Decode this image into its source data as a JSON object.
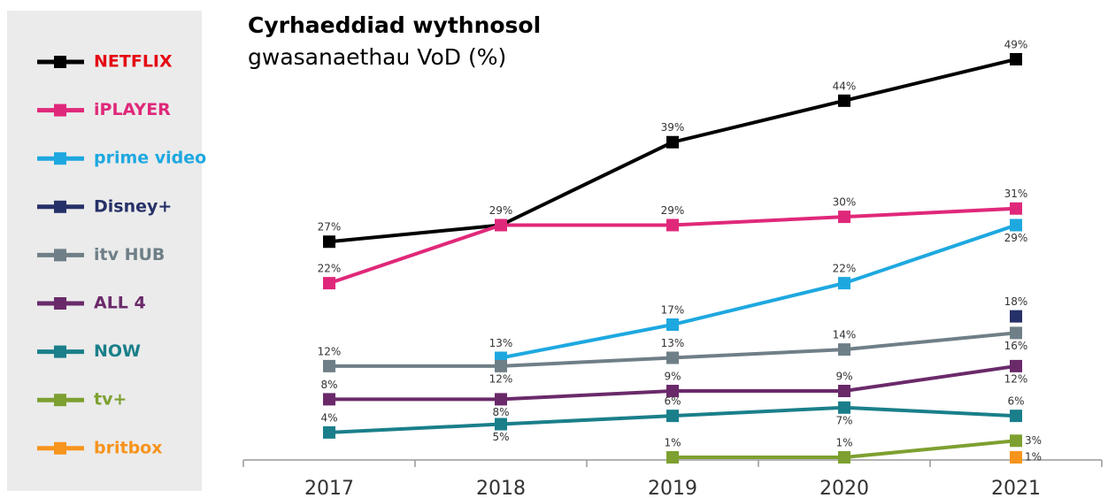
{
  "chart_data": {
    "type": "line",
    "title": "Cyrhaeddiad wythnosol",
    "subtitle": "gwasanaethau VoD (%)",
    "categories": [
      "2017",
      "2018",
      "2019",
      "2020",
      "2021"
    ],
    "ylim": [
      0,
      50
    ],
    "series": [
      {
        "name": "NETFLIX",
        "color": "#000000",
        "values": [
          27,
          29,
          39,
          44,
          49
        ],
        "value_labels": [
          "27%",
          "29%",
          "39%",
          "44%",
          "49%"
        ]
      },
      {
        "name": "iPLAYER",
        "color": "#e0287a",
        "values": [
          22,
          29,
          29,
          30,
          31
        ],
        "value_labels": [
          "22%",
          null,
          "29%",
          "30%",
          "31%"
        ]
      },
      {
        "name": "prime video",
        "color": "#1ea8e0",
        "values": [
          null,
          13,
          17,
          22,
          29
        ],
        "value_labels": [
          null,
          "13%",
          "17%",
          "22%",
          "29%"
        ]
      },
      {
        "name": "Disney+",
        "color": "#263068",
        "values": [
          null,
          null,
          null,
          null,
          18
        ],
        "value_labels": [
          null,
          null,
          null,
          null,
          "18%"
        ]
      },
      {
        "name": "itv HUB",
        "color": "#6f7f87",
        "values": [
          12,
          12,
          13,
          14,
          16
        ],
        "value_labels": [
          "12%",
          "12%",
          "13%",
          "14%",
          "16%"
        ]
      },
      {
        "name": "ALL 4",
        "color": "#6a2a6a",
        "values": [
          8,
          8,
          9,
          9,
          12
        ],
        "value_labels": [
          "8%",
          "8%",
          "9%",
          "9%",
          "12%"
        ]
      },
      {
        "name": "NOW",
        "color": "#1a7f8a",
        "values": [
          4,
          5,
          6,
          7,
          6
        ],
        "value_labels": [
          "4%",
          "5%",
          "6%",
          "7%",
          "6%"
        ]
      },
      {
        "name": "tv+",
        "color": "#7da030",
        "values": [
          null,
          null,
          1,
          1,
          3
        ],
        "value_labels": [
          null,
          null,
          "1%",
          "1%",
          "3%"
        ]
      },
      {
        "name": "britbox",
        "color": "#f7941d",
        "values": [
          null,
          null,
          null,
          null,
          1
        ],
        "value_labels": [
          null,
          null,
          null,
          null,
          "1%"
        ]
      }
    ]
  }
}
